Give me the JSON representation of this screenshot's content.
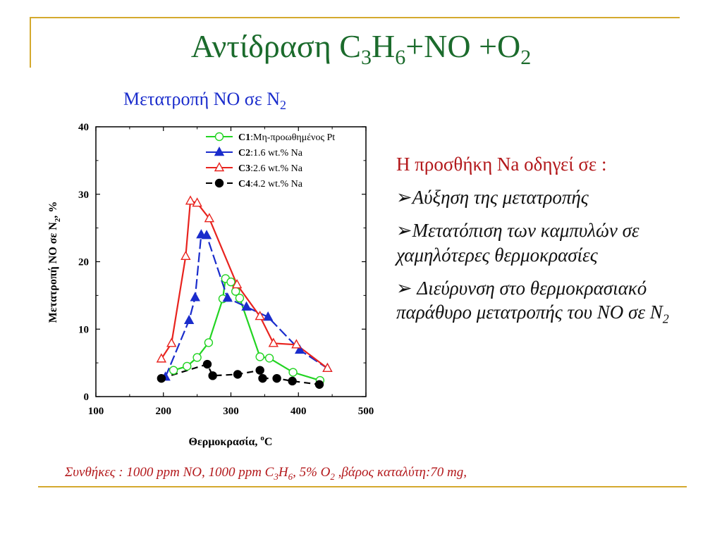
{
  "slide": {
    "title": [
      "Αντίδραση C",
      "3",
      "H",
      "6",
      "+NO +O",
      "2"
    ],
    "caption": [
      "Μετατροπή NO σε N",
      "2"
    ],
    "note_head": "Η προσθήκη Na οδηγεί σε :",
    "notes": [
      {
        "arrow": "➢",
        "text": "Αύξηση της μετατροπής"
      },
      {
        "arrow": "➢",
        "text": "Μετατόπιση των καμπυλών σε χαμηλότερες θερμοκρασίες"
      },
      {
        "arrow": "➢ ",
        "text": "Διεύρυνση στο θερμοκρασιακό παράθυρο μετατροπής του NO σε N",
        "sub": "2"
      }
    ],
    "conditions": [
      "Συνθήκες : 1000 ppm NO, 1000 ppm C",
      "3",
      "H",
      "6",
      ", 5% O",
      "2",
      " ,βάρος καταλύτη:70 mg,"
    ],
    "colors": {
      "title": "#1b6b2c",
      "caption": "#1a2ccc",
      "accent_red": "#b3181b",
      "rule": "#d4a92e"
    }
  },
  "chart_data": {
    "type": "line",
    "xlabel": "Θερμοκρασία, ",
    "xlabel_sup": "o",
    "xlabel_end": "C",
    "ylabel": "Μετατροπή NO σε N",
    "ylabel_sub": "2",
    "ylabel_end": ", %",
    "xlim": [
      100,
      500
    ],
    "ylim": [
      0,
      40
    ],
    "xticks": [
      100,
      200,
      300,
      400,
      500
    ],
    "yticks": [
      0,
      10,
      20,
      30,
      40
    ],
    "grid": false,
    "legend_position": "top-right",
    "series": [
      {
        "name_bold": "C1",
        "name_rest": ":Μη-προωθημένος Pt",
        "color": "#22d422",
        "marker": "open-circle",
        "x": [
          215,
          235,
          250,
          267,
          288,
          292,
          300,
          307,
          313,
          343,
          357,
          392,
          432
        ],
        "y": [
          3.9,
          4.5,
          5.8,
          8.0,
          14.5,
          17.5,
          17.0,
          15.6,
          14.6,
          5.9,
          5.7,
          3.6,
          2.4
        ]
      },
      {
        "name_bold": "C2",
        "name_rest": ":1.6 wt.% Na",
        "color": "#1a2ccc",
        "marker": "filled-triangle",
        "x": [
          203,
          238,
          247,
          256,
          264,
          295,
          323,
          355,
          402,
          443
        ],
        "y": [
          2.9,
          11.3,
          14.7,
          24.0,
          23.9,
          14.6,
          13.3,
          11.8,
          6.9,
          4.2
        ]
      },
      {
        "name_bold": "C3",
        "name_rest": ":2.6 wt.% Na",
        "color": "#e8231e",
        "marker": "open-triangle",
        "x": [
          197,
          212,
          233,
          240,
          250,
          268,
          309,
          343,
          363,
          397,
          443
        ],
        "y": [
          5.6,
          7.9,
          20.8,
          29.0,
          28.7,
          26.4,
          16.6,
          11.9,
          7.9,
          7.7,
          4.2
        ]
      },
      {
        "name_bold": "C4",
        "name_rest": ":4.2 wt.% Na",
        "color": "#000000",
        "marker": "filled-circle",
        "x": [
          197,
          265,
          273,
          310,
          343,
          347,
          368,
          391,
          431
        ],
        "y": [
          2.7,
          4.8,
          3.1,
          3.3,
          3.9,
          2.7,
          2.7,
          2.3,
          1.8
        ]
      }
    ]
  }
}
